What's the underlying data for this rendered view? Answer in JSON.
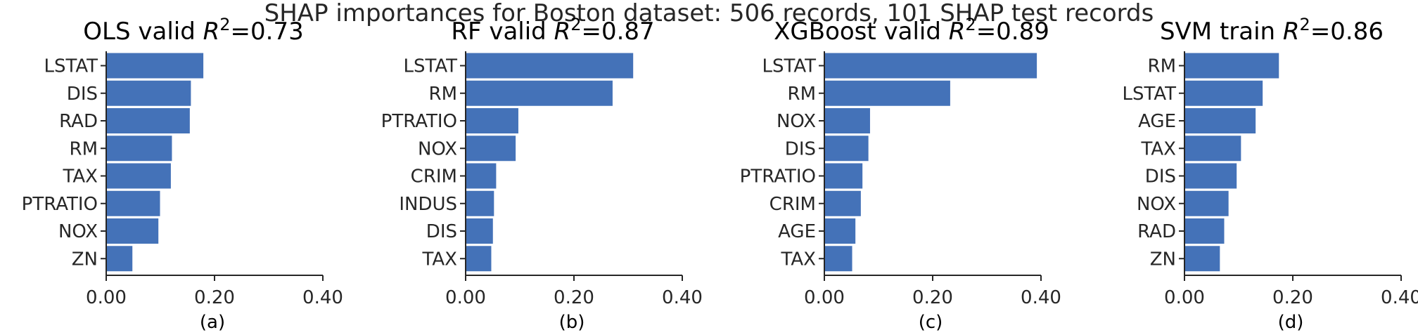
{
  "figure_title": "SHAP importances for Boston dataset: 506 records, 101 SHAP test records",
  "bar_color": "#4472b8",
  "chart_data": [
    {
      "type": "bar",
      "orientation": "horizontal",
      "title_prefix": "OLS valid ",
      "title_var": "R",
      "title_sup": "2",
      "title_suffix": "=0.73",
      "panel_label": "(a)",
      "categories": [
        "LSTAT",
        "DIS",
        "RAD",
        "RM",
        "TAX",
        "PTRATIO",
        "NOX",
        "ZN"
      ],
      "values": [
        0.18,
        0.157,
        0.155,
        0.122,
        0.12,
        0.1,
        0.097,
        0.049
      ],
      "xlim": [
        0,
        0.4
      ],
      "xticks": [
        "0.00",
        "0.20",
        "0.40"
      ],
      "xtick_values": [
        0,
        0.2,
        0.4
      ]
    },
    {
      "type": "bar",
      "orientation": "horizontal",
      "title_prefix": "RF valid ",
      "title_var": "R",
      "title_sup": "2",
      "title_suffix": "=0.87",
      "panel_label": "(b)",
      "categories": [
        "LSTAT",
        "RM",
        "PTRATIO",
        "NOX",
        "CRIM",
        "INDUS",
        "DIS",
        "TAX"
      ],
      "values": [
        0.31,
        0.272,
        0.098,
        0.093,
        0.057,
        0.053,
        0.051,
        0.048
      ],
      "xlim": [
        0,
        0.4
      ],
      "xticks": [
        "0.00",
        "0.20",
        "0.40"
      ],
      "xtick_values": [
        0,
        0.2,
        0.4
      ]
    },
    {
      "type": "bar",
      "orientation": "horizontal",
      "title_prefix": "XGBoost valid ",
      "title_var": "R",
      "title_sup": "2",
      "title_suffix": "=0.89",
      "panel_label": "(c)",
      "categories": [
        "LSTAT",
        "RM",
        "NOX",
        "DIS",
        "PTRATIO",
        "CRIM",
        "AGE",
        "TAX"
      ],
      "values": [
        0.393,
        0.233,
        0.085,
        0.082,
        0.071,
        0.068,
        0.058,
        0.052
      ],
      "xlim": [
        0,
        0.4
      ],
      "xticks": [
        "0.00",
        "0.20",
        "0.40"
      ],
      "xtick_values": [
        0,
        0.2,
        0.4
      ]
    },
    {
      "type": "bar",
      "orientation": "horizontal",
      "title_prefix": "SVM train ",
      "title_var": "R",
      "title_sup": "2",
      "title_suffix": "=0.86",
      "panel_label": "(d)",
      "categories": [
        "RM",
        "LSTAT",
        "AGE",
        "TAX",
        "DIS",
        "NOX",
        "RAD",
        "ZN"
      ],
      "values": [
        0.175,
        0.145,
        0.132,
        0.105,
        0.097,
        0.082,
        0.074,
        0.066
      ],
      "xlim": [
        0,
        0.4
      ],
      "xticks": [
        "0.00",
        "0.20",
        "0.40"
      ],
      "xtick_values": [
        0,
        0.2,
        0.4
      ]
    }
  ]
}
